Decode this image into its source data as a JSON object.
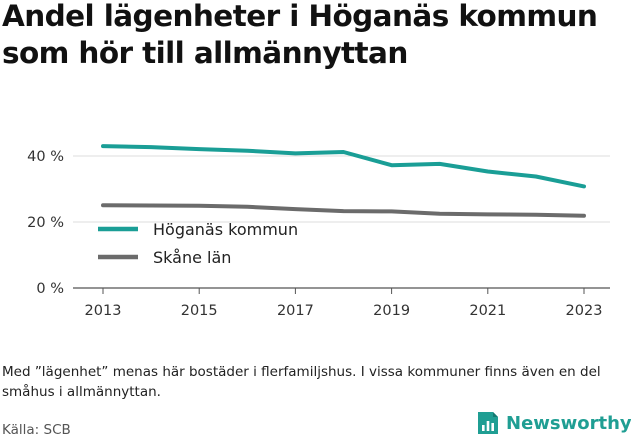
{
  "title": "Andel lägenheter i Höganäs kommun som hör till allmännyttan",
  "note": "Med ”lägenhet” menas här bostäder i flerfamiljshus. I vissa kommuner finns även en del småhus i allmännyttan.",
  "source": "Källa: SCB",
  "brand": {
    "name": "Newsworthy",
    "logo_icon": "chart-document-icon",
    "color": "#1f9e93"
  },
  "chart_data": {
    "type": "line",
    "x": [
      2013,
      2014,
      2015,
      2016,
      2017,
      2018,
      2019,
      2020,
      2021,
      2022,
      2023
    ],
    "series": [
      {
        "name": "Höganäs kommun",
        "color": "#1a9e96",
        "values": [
          43.0,
          42.7,
          42.1,
          41.6,
          40.8,
          41.2,
          37.2,
          37.6,
          35.3,
          33.8,
          30.8
        ]
      },
      {
        "name": "Skåne län",
        "color": "#6b6b6b",
        "values": [
          25.1,
          25.0,
          24.9,
          24.6,
          23.9,
          23.3,
          23.2,
          22.5,
          22.3,
          22.2,
          21.9
        ]
      }
    ],
    "x_ticks": [
      "2013",
      "2015",
      "2017",
      "2019",
      "2021",
      "2023"
    ],
    "y_ticks": [
      "0 %",
      "20 %",
      "40 %"
    ],
    "y_tick_values": [
      0,
      20,
      40
    ],
    "xlim": [
      2013,
      2023
    ],
    "ylim": [
      0,
      45
    ],
    "grid": "horizontal",
    "legend_position": "lower-left"
  }
}
